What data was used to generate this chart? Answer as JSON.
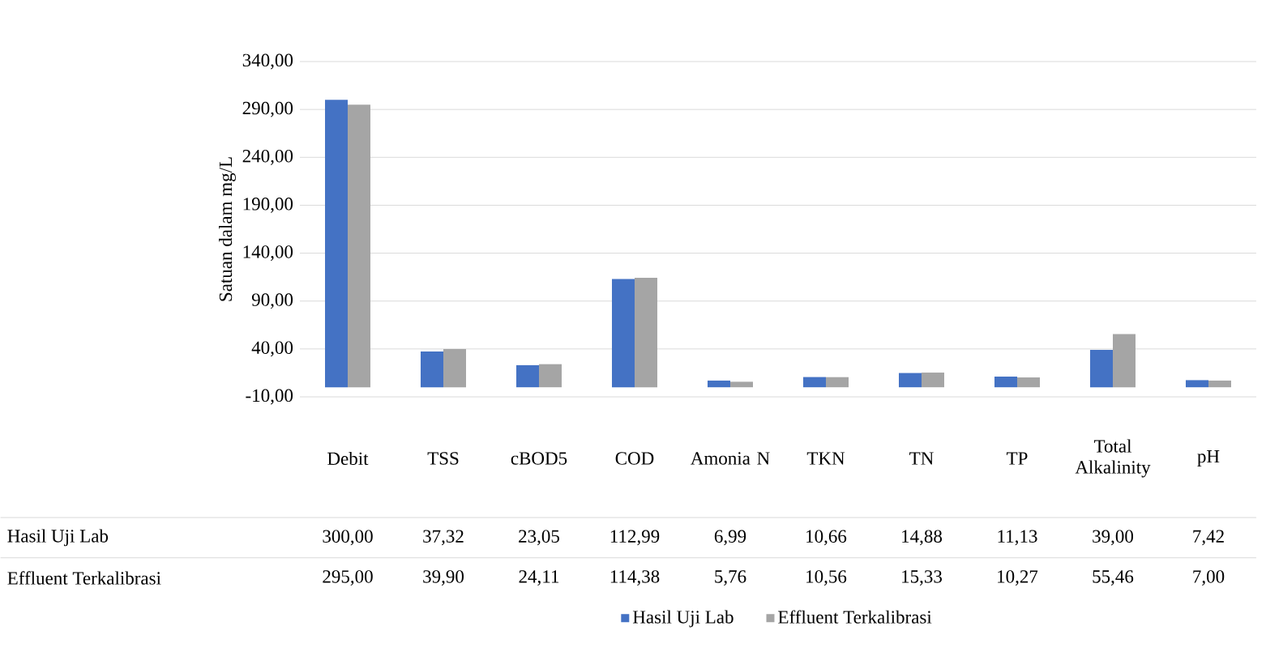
{
  "chart_data": {
    "type": "bar",
    "ylabel": "Satuan dalam mg/L",
    "categories": [
      "Debit",
      "TSS",
      "cBOD5",
      "COD",
      "Amonia N",
      "TKN",
      "TN",
      "TP",
      "Total Alkalinity",
      "pH"
    ],
    "series": [
      {
        "name": "Hasil Uji Lab",
        "color": "#4472c4",
        "values": [
          300.0,
          37.32,
          23.05,
          112.99,
          6.99,
          10.66,
          14.88,
          11.13,
          39.0,
          7.42
        ],
        "value_labels": [
          "300,00",
          "37,32",
          "23,05",
          "112,99",
          "6,99",
          "10,66",
          "14,88",
          "11,13",
          "39,00",
          "7,42"
        ]
      },
      {
        "name": "Effluent Terkalibrasi",
        "color": "#a5a5a5",
        "values": [
          295.0,
          39.9,
          24.11,
          114.38,
          5.76,
          10.56,
          15.33,
          10.27,
          55.46,
          7.0
        ],
        "value_labels": [
          "295,00",
          "39,90",
          "24,11",
          "114,38",
          "5,76",
          "10,56",
          "15,33",
          "10,27",
          "55,46",
          "7,00"
        ]
      }
    ],
    "ylim": [
      -10,
      340
    ],
    "yticks": [
      {
        "value": -10,
        "label": "-10,00"
      },
      {
        "value": 40,
        "label": "40,00"
      },
      {
        "value": 90,
        "label": "90,00"
      },
      {
        "value": 140,
        "label": "140,00"
      },
      {
        "value": 190,
        "label": "190,00"
      },
      {
        "value": 240,
        "label": "240,00"
      },
      {
        "value": 290,
        "label": "290,00"
      },
      {
        "value": 340,
        "label": "340,00"
      }
    ],
    "grid": "y",
    "legend": "bottom"
  }
}
